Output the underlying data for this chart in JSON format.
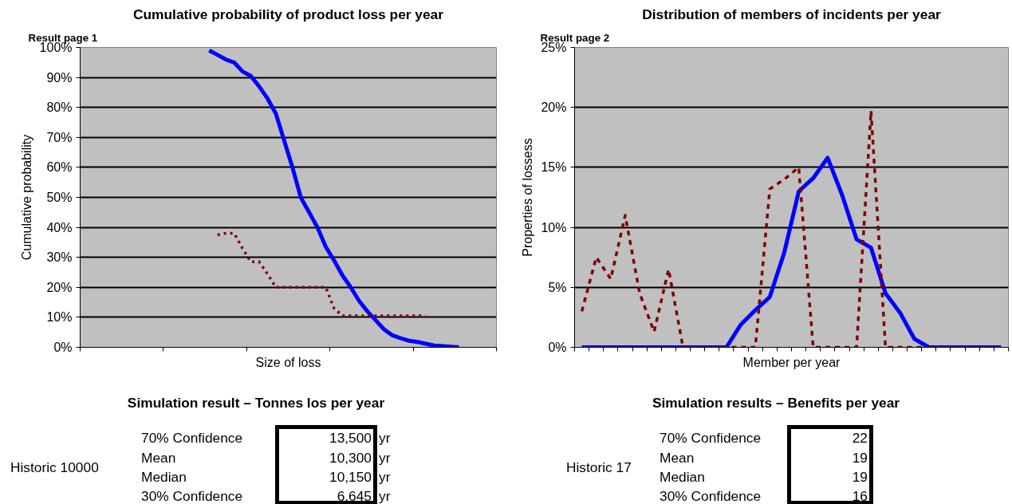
{
  "chart_data": [
    {
      "type": "line",
      "title": "Cumulative probability of product loss per year",
      "xlabel": "Size of loss",
      "ylabel": "Cumulative probability",
      "categories": [
        null,
        null,
        null,
        null,
        null,
        null,
        null,
        null,
        null,
        null,
        null,
        null,
        null,
        null,
        null,
        null,
        null,
        null,
        null,
        null,
        null,
        null,
        null,
        null,
        null,
        null,
        null,
        null,
        null,
        null,
        null,
        null,
        null,
        null,
        null,
        null,
        null,
        null,
        null,
        null,
        null,
        null,
        null,
        null,
        null,
        null,
        null,
        null,
        null,
        null
      ],
      "series": [
        {
          "color": "#0000ff",
          "line_style": "solid",
          "values": [
            null,
            null,
            null,
            null,
            null,
            null,
            null,
            null,
            null,
            null,
            null,
            null,
            null,
            null,
            null,
            99,
            97.5,
            96,
            95,
            92,
            90.5,
            87,
            83,
            78,
            69,
            60,
            50,
            45,
            40,
            33.5,
            29,
            24,
            20,
            15.5,
            12,
            9,
            6,
            4,
            3,
            2.2,
            1.8,
            1.2,
            0.6,
            0.4,
            0.2,
            0,
            null,
            null,
            null,
            null
          ]
        },
        {
          "color": "#800000",
          "line_style": "dotted",
          "values": [
            null,
            null,
            null,
            null,
            null,
            null,
            null,
            null,
            null,
            null,
            null,
            null,
            null,
            null,
            null,
            null,
            37.5,
            38,
            38,
            33,
            28.5,
            28.5,
            24.5,
            20,
            20,
            20,
            20,
            20,
            20,
            20,
            13,
            10.5,
            10.5,
            10.5,
            10.5,
            10.5,
            10.5,
            10.5,
            10.5,
            10.5,
            10.5,
            10.5,
            null,
            null,
            null,
            null,
            null,
            null,
            null,
            null
          ]
        }
      ],
      "ylim": [
        0,
        100
      ],
      "yticks": [
        {
          "value": 0,
          "label": "0%"
        },
        {
          "value": 10,
          "label": "10%"
        },
        {
          "value": 20,
          "label": "20%"
        },
        {
          "value": 30,
          "label": "30%"
        },
        {
          "value": 40,
          "label": "40%"
        },
        {
          "value": 50,
          "label": "50%"
        },
        {
          "value": 60,
          "label": "60%"
        },
        {
          "value": 70,
          "label": "70%"
        },
        {
          "value": 80,
          "label": "80%"
        },
        {
          "value": 90,
          "label": "90%"
        },
        {
          "value": 100,
          "label": "100%"
        }
      ],
      "grid": "y",
      "tick_labels": "y",
      "marker": "none",
      "annotations": [
        "Result page 1",
        "Simulation result – Tonnes los per year",
        "Historic 10000",
        "70% Confidence",
        "Mean",
        "Median",
        "30% Confidence",
        "13,500",
        "10,300",
        "10,150",
        "6,645",
        "yr",
        "yr",
        "yr",
        "yr"
      ]
    },
    {
      "type": "line",
      "title": "Distribution of members of incidents per year",
      "xlabel": "Member per year",
      "ylabel": "Properties of lossess",
      "categories": [
        null,
        null,
        null,
        null,
        null,
        null,
        null,
        null,
        null,
        null,
        null,
        null,
        null,
        null,
        null,
        null,
        null,
        null,
        null,
        null,
        null,
        null,
        null,
        null,
        null,
        null,
        null,
        null,
        null,
        null
      ],
      "series": [
        {
          "color": "#0000ff",
          "line_style": "solid",
          "values": [
            0,
            0,
            0,
            0,
            0,
            0,
            0,
            0,
            0,
            0,
            0,
            1.9,
            3.1,
            4.2,
            7.9,
            13,
            14.1,
            15.8,
            12.7,
            9,
            8.3,
            4.5,
            2.9,
            0.7,
            0,
            0,
            0,
            0,
            0,
            0
          ]
        },
        {
          "color": "#800000",
          "line_style": "dashed",
          "values": [
            3,
            7.5,
            5.7,
            11,
            4.5,
            1.3,
            6.5,
            0,
            0,
            0,
            0,
            0,
            0,
            13.2,
            14,
            15,
            0,
            0,
            0,
            0,
            19.7,
            0,
            0,
            0,
            0,
            0,
            0,
            0,
            0,
            0
          ]
        }
      ],
      "ylim": [
        0,
        25
      ],
      "yticks": [
        {
          "value": 0,
          "label": "0%"
        },
        {
          "value": 5,
          "label": "5%"
        },
        {
          "value": 10,
          "label": "10%"
        },
        {
          "value": 15,
          "label": "15%"
        },
        {
          "value": 20,
          "label": "20%"
        },
        {
          "value": 25,
          "label": "25%"
        }
      ],
      "grid": "y",
      "tick_labels": "y",
      "marker": "none",
      "annotations": [
        "Result page 2",
        "Simulation results – Benefits per year",
        "Historic 17",
        "70% Confidence",
        "Mean",
        "Median",
        "30% Confidence",
        "22",
        "19",
        "19",
        "16"
      ]
    }
  ]
}
